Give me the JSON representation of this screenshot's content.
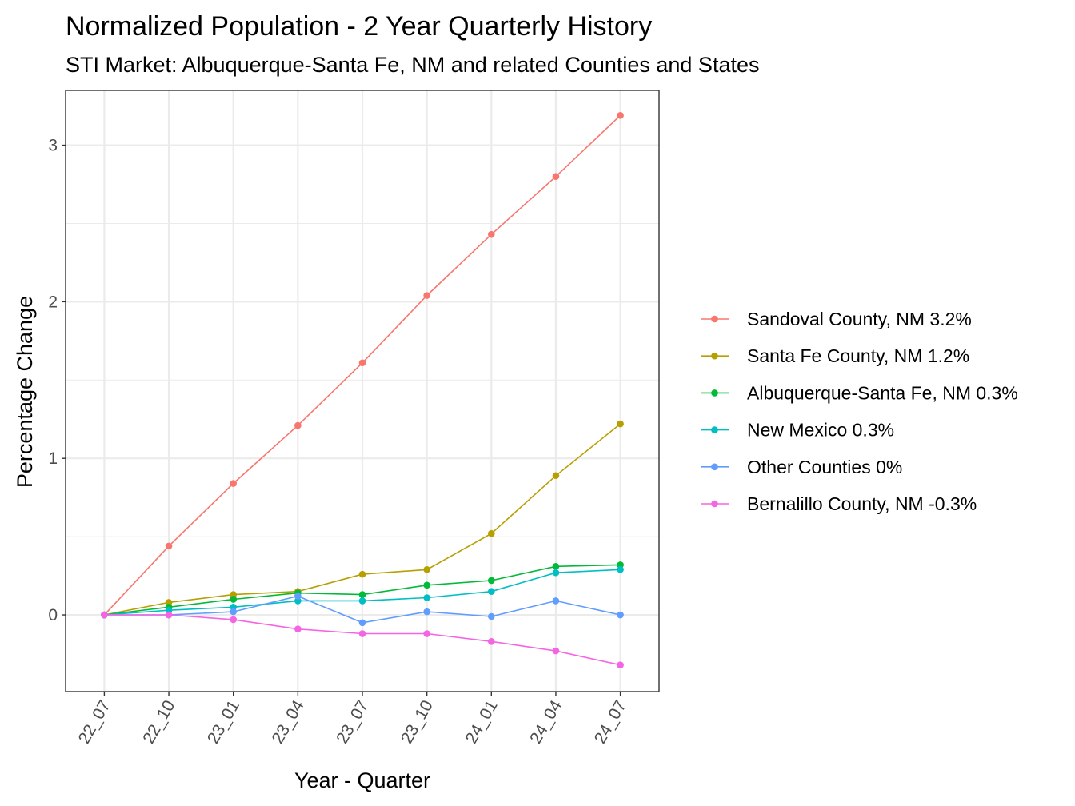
{
  "chart_data": {
    "type": "line",
    "title": "Normalized Population - 2 Year Quarterly History",
    "subtitle": "STI Market: Albuquerque-Santa Fe, NM and related Counties and States",
    "xlabel": "Year - Quarter",
    "ylabel": "Percentage Change",
    "categories": [
      "22_07",
      "22_10",
      "23_01",
      "23_04",
      "23_07",
      "23_10",
      "24_01",
      "24_04",
      "24_07"
    ],
    "ylim": [
      -0.49,
      3.35
    ],
    "yticks": [
      0,
      1,
      2,
      3
    ],
    "grid": true,
    "legend_position": "right",
    "series": [
      {
        "name": "Sandoval County, NM 3.2%",
        "color": "#F8766D",
        "values": [
          0,
          0.44,
          0.84,
          1.21,
          1.61,
          2.04,
          2.43,
          2.8,
          3.19
        ]
      },
      {
        "name": "Santa Fe County, NM 1.2%",
        "color": "#B79F00",
        "values": [
          0,
          0.08,
          0.13,
          0.15,
          0.26,
          0.29,
          0.52,
          0.89,
          1.22
        ]
      },
      {
        "name": "Albuquerque-Santa Fe, NM 0.3%",
        "color": "#00BA38",
        "values": [
          0,
          0.05,
          0.1,
          0.14,
          0.13,
          0.19,
          0.22,
          0.31,
          0.32
        ]
      },
      {
        "name": "New Mexico 0.3%",
        "color": "#00BFC4",
        "values": [
          0,
          0.03,
          0.05,
          0.09,
          0.09,
          0.11,
          0.15,
          0.27,
          0.29
        ]
      },
      {
        "name": "Other Counties 0%",
        "color": "#619CFF",
        "values": [
          0,
          0.0,
          0.02,
          0.12,
          -0.05,
          0.02,
          -0.01,
          0.09,
          0.0
        ]
      },
      {
        "name": "Bernalillo County, NM -0.3%",
        "color": "#F564E3",
        "values": [
          0,
          0.0,
          -0.03,
          -0.09,
          -0.12,
          -0.12,
          -0.17,
          -0.23,
          -0.32
        ]
      }
    ]
  }
}
